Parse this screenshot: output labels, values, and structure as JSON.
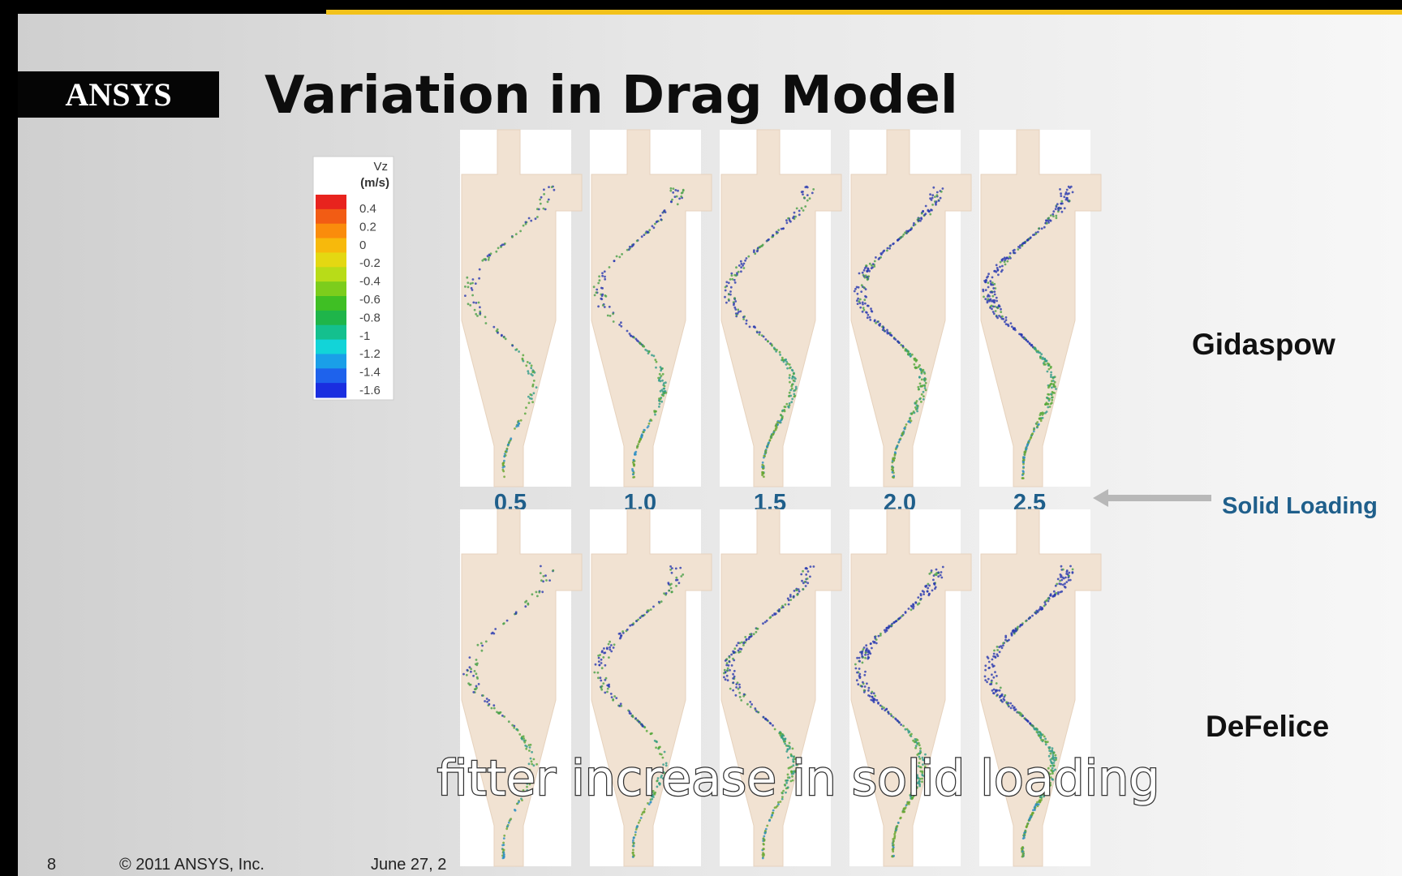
{
  "logo": "ANSYS",
  "title": "Variation in Drag Model",
  "legend": {
    "title": "Vz",
    "unit": "(m/s)",
    "ticks": [
      "0.4",
      "0.2",
      "0",
      "-0.2",
      "-0.4",
      "-0.6",
      "-0.8",
      "-1",
      "-1.2",
      "-1.4",
      "-1.6"
    ],
    "colors": [
      "#e8231e",
      "#f25c14",
      "#fa8c0c",
      "#f7b90c",
      "#e4d812",
      "#b8dc18",
      "#7ccd1c",
      "#3fbf24",
      "#1fb54a",
      "#14c08e",
      "#12d4d8",
      "#1a9fe8",
      "#1e62ec",
      "#1a2ee0"
    ]
  },
  "loadings": [
    "0.5",
    "1.0",
    "1.5",
    "2.0",
    "2.5"
  ],
  "loading_label": "Solid Loading",
  "rows": [
    "Gidaspow",
    "DeFelice"
  ],
  "footer": {
    "page": "8",
    "copyright": "© 2011 ANSYS, Inc.",
    "date": "June 27, 2"
  },
  "caption": "fitter increase in solid loading"
}
